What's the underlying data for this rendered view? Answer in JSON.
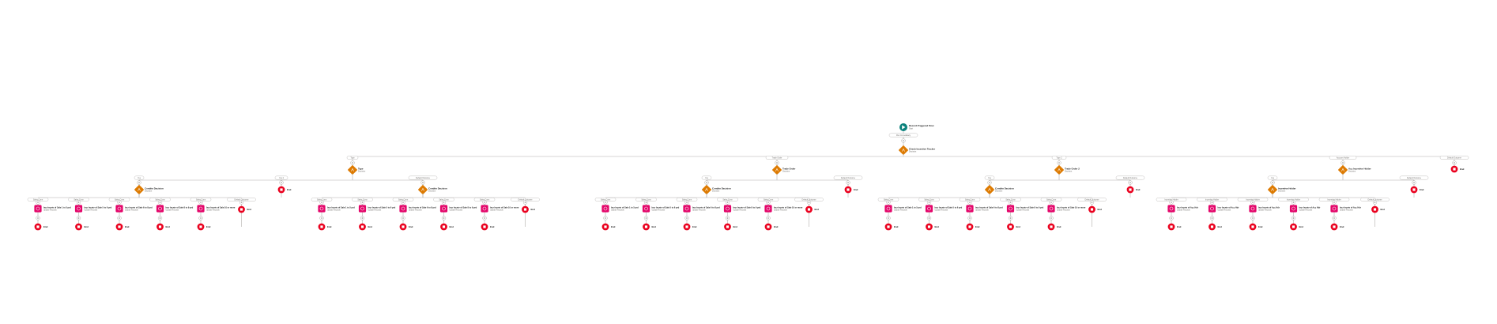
{
  "flow": {
    "start": {
      "title": "Record-Triggered Flow",
      "subtitle": "Start"
    },
    "start_connector_label": "Run Immediately",
    "root_decision": {
      "title": "Check Incentive Tracker",
      "subtitle": "Decision"
    },
    "outcome_labels": [
      "Type",
      "Trade Order",
      "Type 2",
      "Account Holder",
      "Default Outcome"
    ],
    "branches": [
      {
        "decision": {
          "title": "Type",
          "subtitle": "Decision"
        },
        "sub_labels": [
          "Yes",
          "Yes 2",
          "Default Outcome"
        ],
        "subdecisions": [
          {
            "decision": {
              "title": "Conditn Decision",
              "subtitle": "Decision"
            },
            "paths": [
              "Sales Conn",
              "Sales Conn",
              "Sales Conn",
              "Sales Conn",
              "Sales Conn",
              "Default Outcome"
            ],
            "actions": [
              {
                "title": "Incr Incntv of Sale 1 to 5 prd",
                "subtitle": "Update Records"
              },
              {
                "title": "Incr Incntv of Sale 5 to 6 prd",
                "subtitle": "Update Records"
              },
              {
                "title": "Incr Incntv of Sale 6 to 8 prd",
                "subtitle": "Update Records"
              },
              {
                "title": "Incr Incntv of Sale 8 to 9 prd",
                "subtitle": "Update Records"
              },
              {
                "title": "Incr Incntv of Sale 10 or more",
                "subtitle": "Update Records"
              }
            ]
          },
          {
            "decision": {
              "title": "Conditn Decision",
              "subtitle": "Decision"
            },
            "paths": [
              "Sales Conn",
              "Sales Conn",
              "Sales Conn",
              "Sales Conn",
              "Sales Conn",
              "Default Outcome"
            ],
            "actions": [
              {
                "title": "Incr Incntv of Sale 1 to 5 prd",
                "subtitle": "Update Records"
              },
              {
                "title": "Incr Incntv of Sale 5 to 6 prd",
                "subtitle": "Update Records"
              },
              {
                "title": "Incr Incntv of Sale 6 to 8 prd",
                "subtitle": "Update Records"
              },
              {
                "title": "Incr Incntv of Sale 8 to 9 prd",
                "subtitle": "Update Records"
              },
              {
                "title": "Incr Incntv of Sale 10 or more",
                "subtitle": "Update Records"
              }
            ]
          }
        ]
      },
      {
        "decision": {
          "title": "Trade Order",
          "subtitle": "Decision"
        },
        "sub_labels": [
          "Yes",
          "Default Outcome"
        ],
        "subdecisions": [
          {
            "decision": {
              "title": "Conditn Decision",
              "subtitle": "Decision"
            },
            "paths": [
              "Sales Conn",
              "Sales Conn",
              "Sales Conn",
              "Sales Conn",
              "Sales Conn",
              "Default Outcome"
            ],
            "actions": [
              {
                "title": "Incr Incntv of Sale 1 to 5 prd",
                "subtitle": "Update Records"
              },
              {
                "title": "Incr Incntv of Sale 5 to 6 prd",
                "subtitle": "Update Records"
              },
              {
                "title": "Incr Incntv of Sale 6 to 8 prd",
                "subtitle": "Update Records"
              },
              {
                "title": "Incr Incntv of Sale 8 to 9 prd",
                "subtitle": "Update Records"
              },
              {
                "title": "Incr Incntv of Sale 10 or more",
                "subtitle": "Update Records"
              }
            ]
          }
        ]
      },
      {
        "decision": {
          "title": "Trade Order 2",
          "subtitle": "Decision"
        },
        "sub_labels": [
          "Yes",
          "Default Outcome"
        ],
        "subdecisions": [
          {
            "decision": {
              "title": "Conditn Decision",
              "subtitle": "Decision"
            },
            "paths": [
              "Sales Conn",
              "Sales Conn",
              "Sales Conn",
              "Sales Conn",
              "Sales Conn",
              "Default Outcome"
            ],
            "actions": [
              {
                "title": "Incr Incntv of Sale 1 to 5 prd",
                "subtitle": "Update Records"
              },
              {
                "title": "Incr Incntv of Sale 5 to 6 prd",
                "subtitle": "Update Records"
              },
              {
                "title": "Incr Incntv of Sale 6 to 8 prd",
                "subtitle": "Update Records"
              },
              {
                "title": "Incr Incntv of Sale 8 to 9 prd",
                "subtitle": "Update Records"
              },
              {
                "title": "Incr Incntv of Sale 10 or more",
                "subtitle": "Update Records"
              }
            ]
          }
        ]
      },
      {
        "decision": {
          "title": "Acc Incentive Holder",
          "subtitle": "Decision"
        },
        "sub_labels": [
          "Yes",
          "Default Outcome"
        ],
        "subdecisions": [
          {
            "decision": {
              "title": "Incentive Holder",
              "subtitle": "Decision"
            },
            "paths": [
              "Incentive Holder",
              "Incentive Holder",
              "Incentive Holder",
              "Incentive Holder",
              "Incentive Holder",
              "Default Outcome"
            ],
            "actions": [
              {
                "title": "Incr Incntv of Acc Hdr",
                "subtitle": "Update Records"
              },
              {
                "title": "Incr Incntv of Acc Hdr",
                "subtitle": "Update Records"
              },
              {
                "title": "Incr Incntv of Acc Hdr",
                "subtitle": "Update Records"
              },
              {
                "title": "Incr Incntv of Acc Hdr",
                "subtitle": "Update Records"
              },
              {
                "title": "Incr Incntv of Acc Hdr",
                "subtitle": "Update Records"
              }
            ]
          }
        ]
      }
    ],
    "end_label": "End",
    "colors": {
      "start": "#0b827c",
      "decision": "#dd7a01",
      "action": "#e3066a",
      "end": "#ea001e",
      "line": "#b0adab",
      "text": "#181818",
      "subtext": "#706e6b"
    }
  }
}
